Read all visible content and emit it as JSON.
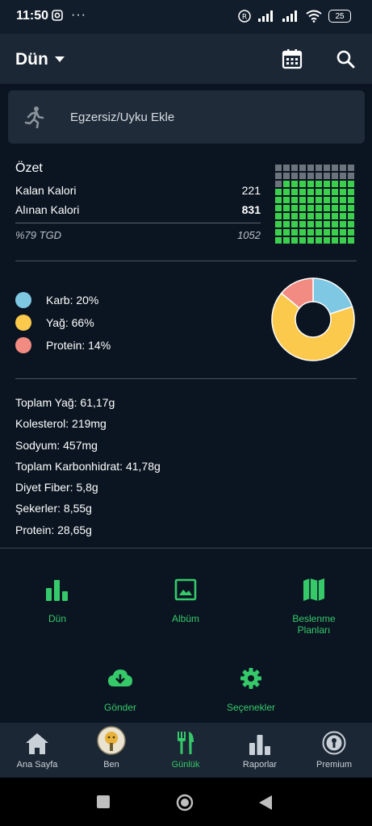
{
  "status_bar": {
    "time": "11:50",
    "battery": "25",
    "dots": "···"
  },
  "app_bar": {
    "title": "Dün"
  },
  "add_card": {
    "label": "Egzersiz/Uyku Ekle"
  },
  "summary": {
    "title": "Özet",
    "rows": [
      {
        "label": "Kalan Kalori",
        "value": "221"
      },
      {
        "label": "Alınan Kalori",
        "value": "831"
      }
    ],
    "footer_label": "%79 TGD",
    "footer_value": "1052",
    "grid": {
      "total_cells": 100,
      "filled_cells": 79,
      "filled_color": "#3ccf4e",
      "empty_color": "#6b737c"
    }
  },
  "macros": {
    "items": [
      {
        "label": "Karb: 20%",
        "percent": 20,
        "color": "#7ec8e3"
      },
      {
        "label": "Yağ: 66%",
        "percent": 66,
        "color": "#fbc94b"
      },
      {
        "label": "Protein: 14%",
        "percent": 14,
        "color": "#f28b82"
      }
    ]
  },
  "nutrients": [
    "Toplam Yağ: 61,17g",
    "Kolesterol: 219mg",
    "Sodyum: 457mg",
    "Toplam Karbonhidrat: 41,78g",
    "Diyet Fiber: 5,8g",
    "Şekerler: 8,55g",
    "Protein: 28,65g"
  ],
  "actions": {
    "dun": "Dün",
    "album": "Albüm",
    "plans": "Beslenme Planları",
    "send": "Gönder",
    "options": "Seçenekler"
  },
  "bottom_nav": {
    "home": "Ana Sayfa",
    "me": "Ben",
    "diary": "Günlük",
    "reports": "Raporlar",
    "premium": "Premium"
  },
  "colors": {
    "accent": "#35c96a",
    "background": "#0b1521",
    "bar": "#1b2734"
  }
}
